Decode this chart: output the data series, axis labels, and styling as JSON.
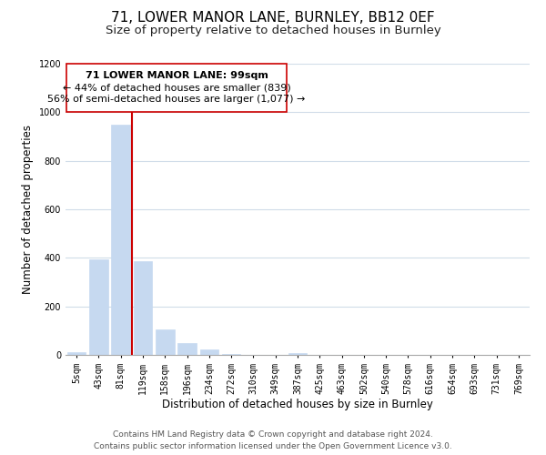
{
  "title": "71, LOWER MANOR LANE, BURNLEY, BB12 0EF",
  "subtitle": "Size of property relative to detached houses in Burnley",
  "xlabel": "Distribution of detached houses by size in Burnley",
  "ylabel": "Number of detached properties",
  "categories": [
    "5sqm",
    "43sqm",
    "81sqm",
    "119sqm",
    "158sqm",
    "196sqm",
    "234sqm",
    "272sqm",
    "310sqm",
    "349sqm",
    "387sqm",
    "425sqm",
    "463sqm",
    "502sqm",
    "540sqm",
    "578sqm",
    "616sqm",
    "654sqm",
    "693sqm",
    "731sqm",
    "769sqm"
  ],
  "bar_values": [
    10,
    395,
    950,
    385,
    105,
    50,
    22,
    5,
    0,
    0,
    8,
    0,
    0,
    0,
    0,
    0,
    0,
    0,
    0,
    0,
    0
  ],
  "bar_color": "#c6d9f0",
  "bar_edge_color": "#c6d9f0",
  "property_line_x": 2.5,
  "property_line_color": "#cc0000",
  "annotation_line1": "71 LOWER MANOR LANE: 99sqm",
  "annotation_line2": "← 44% of detached houses are smaller (839)",
  "annotation_line3": "56% of semi-detached houses are larger (1,077) →",
  "ylim": [
    0,
    1200
  ],
  "yticks": [
    0,
    200,
    400,
    600,
    800,
    1000,
    1200
  ],
  "footer_line1": "Contains HM Land Registry data © Crown copyright and database right 2024.",
  "footer_line2": "Contains public sector information licensed under the Open Government Licence v3.0.",
  "bg_color": "#ffffff",
  "grid_color": "#d0dce8",
  "title_fontsize": 11,
  "subtitle_fontsize": 9.5,
  "axis_label_fontsize": 8.5,
  "tick_fontsize": 7,
  "annotation_fontsize": 8,
  "footer_fontsize": 6.5
}
